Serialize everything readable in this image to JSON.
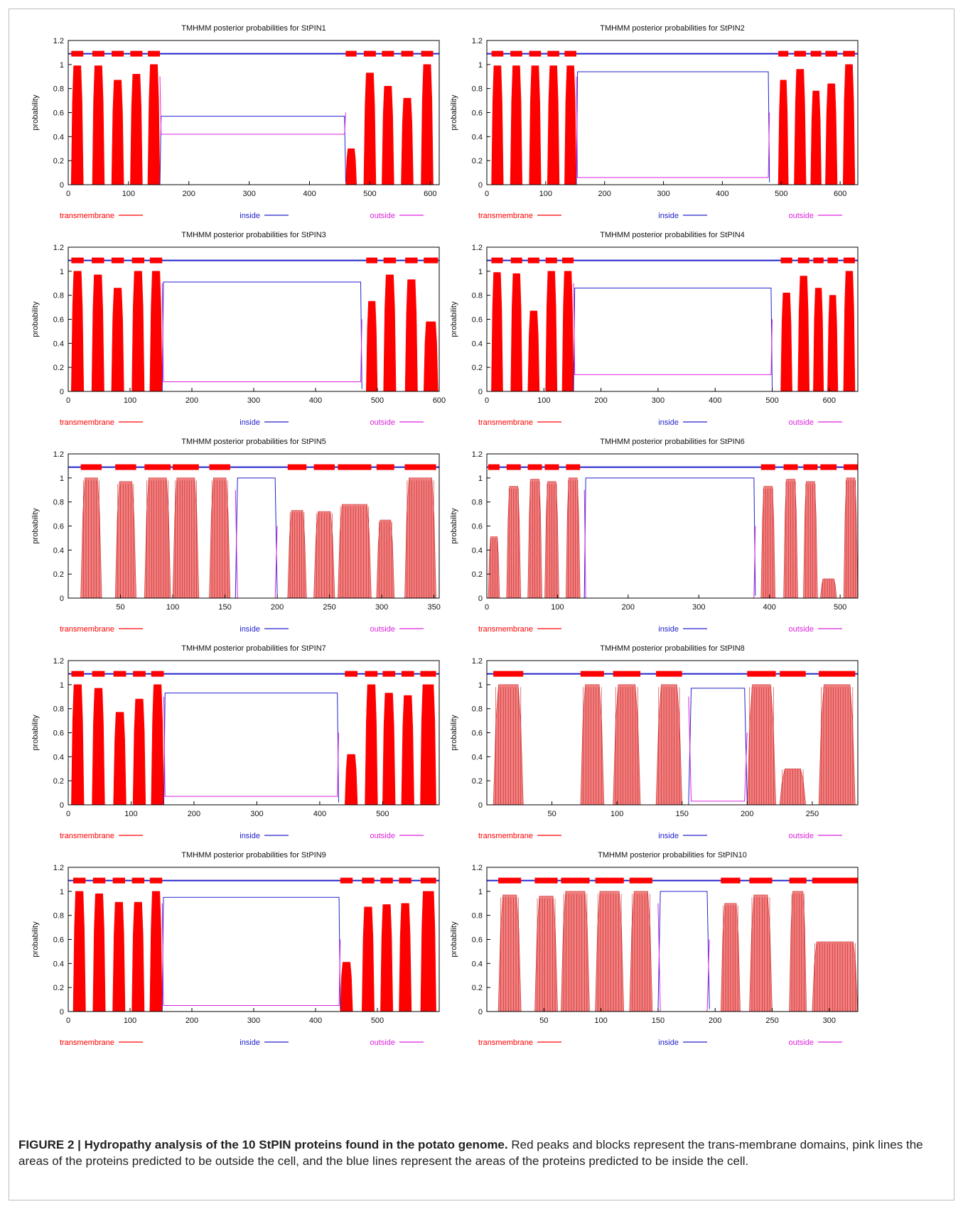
{
  "caption": {
    "label": "FIGURE 2 | Hydropathy analysis of the 10 StPIN proteins found in the potato genome.",
    "text": "Red peaks and blocks represent the trans-membrane domains, pink lines the areas of the proteins predicted to be outside the cell, and the blue lines represent the areas of the proteins predicted to be inside the cell."
  },
  "colors": {
    "transmembrane": "#ff0000",
    "transmembrane_striped": "#f08080",
    "inside": "#2222cc",
    "outside": "#dd22dd",
    "axis": "#000000"
  },
  "chart_data": [
    {
      "type": "area",
      "title": "TMHMM posterior probabilities for StPIN1",
      "ylabel": "probability",
      "xlim": [
        0,
        615
      ],
      "ylim": [
        0,
        1.2
      ],
      "xticks": [
        0,
        100,
        200,
        300,
        400,
        500,
        600
      ],
      "yticks": [
        0,
        0.2,
        0.4,
        0.6,
        0.8,
        1,
        1.2
      ],
      "grid": false,
      "style": "solid",
      "legend": [
        "transmembrane",
        "inside",
        "outside"
      ],
      "tm_segments": [
        [
          5,
          25,
          0.99
        ],
        [
          40,
          60,
          0.99
        ],
        [
          72,
          92,
          0.87
        ],
        [
          103,
          123,
          0.92
        ],
        [
          132,
          152,
          1.0
        ],
        [
          460,
          478,
          0.3
        ],
        [
          490,
          510,
          0.93
        ],
        [
          520,
          540,
          0.82
        ],
        [
          552,
          572,
          0.72
        ],
        [
          585,
          605,
          1.0
        ]
      ],
      "inside_level": 0.57,
      "outside_level": 0.42,
      "loop": [
        152,
        460
      ]
    },
    {
      "type": "area",
      "title": "TMHMM posterior probabilities for StPIN2",
      "ylabel": "probability",
      "xlim": [
        0,
        630
      ],
      "ylim": [
        0,
        1.2
      ],
      "xticks": [
        0,
        100,
        200,
        300,
        400,
        500,
        600
      ],
      "yticks": [
        0,
        0.2,
        0.4,
        0.6,
        0.8,
        1,
        1.2
      ],
      "grid": false,
      "style": "solid",
      "legend": [
        "transmembrane",
        "inside",
        "outside"
      ],
      "tm_segments": [
        [
          8,
          28,
          0.99
        ],
        [
          40,
          60,
          0.99
        ],
        [
          72,
          92,
          0.99
        ],
        [
          103,
          123,
          0.99
        ],
        [
          132,
          152,
          0.99
        ],
        [
          495,
          512,
          0.87
        ],
        [
          522,
          542,
          0.96
        ],
        [
          550,
          568,
          0.78
        ],
        [
          575,
          595,
          0.84
        ],
        [
          605,
          625,
          1.0
        ]
      ],
      "inside_level": 0.94,
      "outside_level": 0.06,
      "loop": [
        152,
        480
      ]
    },
    {
      "type": "area",
      "title": "TMHMM posterior probabilities for StPIN3",
      "ylabel": "probability",
      "xlim": [
        0,
        600
      ],
      "ylim": [
        0,
        1.2
      ],
      "xticks": [
        0,
        100,
        200,
        300,
        400,
        500,
        600
      ],
      "yticks": [
        0,
        0.2,
        0.4,
        0.6,
        0.8,
        1,
        1.2
      ],
      "grid": false,
      "style": "solid",
      "legend": [
        "transmembrane",
        "inside",
        "outside"
      ],
      "tm_segments": [
        [
          5,
          25,
          1.0
        ],
        [
          38,
          58,
          0.97
        ],
        [
          70,
          90,
          0.86
        ],
        [
          103,
          123,
          1.0
        ],
        [
          132,
          152,
          1.0
        ],
        [
          482,
          500,
          0.75
        ],
        [
          510,
          530,
          0.97
        ],
        [
          545,
          565,
          0.93
        ],
        [
          575,
          598,
          0.58
        ]
      ],
      "inside_level": 0.91,
      "outside_level": 0.08,
      "loop": [
        152,
        475
      ]
    },
    {
      "type": "area",
      "title": "TMHMM posterior probabilities for StPIN4",
      "ylabel": "probability",
      "xlim": [
        0,
        650
      ],
      "ylim": [
        0,
        1.2
      ],
      "xticks": [
        0,
        100,
        200,
        300,
        400,
        500,
        600
      ],
      "yticks": [
        0,
        0.2,
        0.4,
        0.6,
        0.8,
        1,
        1.2
      ],
      "grid": false,
      "style": "solid",
      "legend": [
        "transmembrane",
        "inside",
        "outside"
      ],
      "tm_segments": [
        [
          8,
          28,
          0.99
        ],
        [
          42,
          62,
          0.98
        ],
        [
          72,
          92,
          0.67
        ],
        [
          103,
          123,
          1.0
        ],
        [
          132,
          152,
          1.0
        ],
        [
          515,
          535,
          0.82
        ],
        [
          545,
          565,
          0.96
        ],
        [
          572,
          590,
          0.86
        ],
        [
          597,
          615,
          0.8
        ],
        [
          625,
          645,
          1.0
        ]
      ],
      "inside_level": 0.86,
      "outside_level": 0.14,
      "loop": [
        152,
        500
      ]
    },
    {
      "type": "area",
      "title": "TMHMM posterior probabilities for StPIN5",
      "ylabel": "probability",
      "xlim": [
        0,
        355
      ],
      "ylim": [
        0,
        1.2
      ],
      "xticks": [
        50,
        100,
        150,
        200,
        250,
        300,
        350
      ],
      "yticks": [
        0,
        0.2,
        0.4,
        0.6,
        0.8,
        1,
        1.2
      ],
      "grid": false,
      "style": "striped",
      "legend": [
        "transmembrane",
        "inside",
        "outside"
      ],
      "tm_segments": [
        [
          12,
          32,
          1.0
        ],
        [
          45,
          65,
          0.97
        ],
        [
          73,
          98,
          1.0
        ],
        [
          100,
          125,
          1.0
        ],
        [
          135,
          155,
          1.0
        ],
        [
          210,
          228,
          0.73
        ],
        [
          235,
          255,
          0.72
        ],
        [
          258,
          290,
          0.78
        ],
        [
          295,
          312,
          0.65
        ],
        [
          322,
          352,
          1.0
        ]
      ],
      "inside_level": 1.0,
      "outside_level": 0.0,
      "loop": [
        160,
        200
      ]
    },
    {
      "type": "area",
      "title": "TMHMM posterior probabilities for StPIN6",
      "ylabel": "probability",
      "xlim": [
        0,
        525
      ],
      "ylim": [
        0,
        1.2
      ],
      "xticks": [
        0,
        100,
        200,
        300,
        400,
        500
      ],
      "yticks": [
        0,
        0.2,
        0.4,
        0.6,
        0.8,
        1,
        1.2
      ],
      "grid": false,
      "style": "striped",
      "legend": [
        "transmembrane",
        "inside",
        "outside"
      ],
      "tm_segments": [
        [
          2,
          18,
          0.51
        ],
        [
          28,
          48,
          0.93
        ],
        [
          58,
          78,
          0.99
        ],
        [
          82,
          102,
          0.97
        ],
        [
          112,
          132,
          1.0
        ],
        [
          388,
          408,
          0.93
        ],
        [
          420,
          440,
          0.99
        ],
        [
          448,
          468,
          0.97
        ],
        [
          472,
          495,
          0.16
        ],
        [
          505,
          525,
          1.0
        ]
      ],
      "inside_level": 1.0,
      "outside_level": 0.0,
      "loop": [
        138,
        380
      ]
    },
    {
      "type": "area",
      "title": "TMHMM posterior probabilities for StPIN7",
      "ylabel": "probability",
      "xlim": [
        0,
        590
      ],
      "ylim": [
        0,
        1.2
      ],
      "xticks": [
        0,
        100,
        200,
        300,
        400,
        500
      ],
      "yticks": [
        0,
        0.2,
        0.4,
        0.6,
        0.8,
        1,
        1.2
      ],
      "grid": false,
      "style": "solid",
      "legend": [
        "transmembrane",
        "inside",
        "outside"
      ],
      "tm_segments": [
        [
          5,
          25,
          1.0
        ],
        [
          38,
          58,
          0.97
        ],
        [
          72,
          92,
          0.77
        ],
        [
          103,
          123,
          0.88
        ],
        [
          132,
          152,
          1.0
        ],
        [
          440,
          460,
          0.42
        ],
        [
          472,
          492,
          1.0
        ],
        [
          500,
          520,
          0.93
        ],
        [
          530,
          550,
          0.91
        ],
        [
          560,
          585,
          1.0
        ]
      ],
      "inside_level": 0.93,
      "outside_level": 0.07,
      "loop": [
        152,
        430
      ]
    },
    {
      "type": "area",
      "title": "TMHMM posterior probabilities for StPIN8",
      "ylabel": "probability",
      "xlim": [
        0,
        285
      ],
      "ylim": [
        0,
        1.2
      ],
      "xticks": [
        50,
        100,
        150,
        200,
        250
      ],
      "yticks": [
        0,
        0.2,
        0.4,
        0.6,
        0.8,
        1,
        1.2
      ],
      "grid": false,
      "style": "striped",
      "legend": [
        "transmembrane",
        "inside",
        "outside"
      ],
      "tm_segments": [
        [
          5,
          28,
          1.0
        ],
        [
          72,
          90,
          1.0
        ],
        [
          97,
          118,
          1.0
        ],
        [
          130,
          150,
          1.0
        ],
        [
          200,
          222,
          1.0
        ],
        [
          225,
          245,
          0.3
        ],
        [
          255,
          283,
          1.0
        ]
      ],
      "inside_level": 0.97,
      "outside_level": 0.03,
      "loop": [
        155,
        200
      ]
    },
    {
      "type": "area",
      "title": "TMHMM posterior probabilities for StPIN9",
      "ylabel": "probability",
      "xlim": [
        0,
        600
      ],
      "ylim": [
        0,
        1.2
      ],
      "xticks": [
        0,
        100,
        200,
        300,
        400,
        500
      ],
      "yticks": [
        0,
        0.2,
        0.4,
        0.6,
        0.8,
        1,
        1.2
      ],
      "grid": false,
      "style": "solid",
      "legend": [
        "transmembrane",
        "inside",
        "outside"
      ],
      "tm_segments": [
        [
          8,
          28,
          1.0
        ],
        [
          40,
          60,
          0.98
        ],
        [
          72,
          92,
          0.91
        ],
        [
          103,
          123,
          0.91
        ],
        [
          132,
          152,
          1.0
        ],
        [
          440,
          460,
          0.41
        ],
        [
          475,
          495,
          0.87
        ],
        [
          505,
          525,
          0.89
        ],
        [
          535,
          555,
          0.9
        ],
        [
          570,
          595,
          1.0
        ]
      ],
      "inside_level": 0.95,
      "outside_level": 0.05,
      "loop": [
        152,
        440
      ]
    },
    {
      "type": "area",
      "title": "TMHMM posterior probabilities for StPIN10",
      "ylabel": "probability",
      "xlim": [
        0,
        325
      ],
      "ylim": [
        0,
        1.2
      ],
      "xticks": [
        50,
        100,
        150,
        200,
        250,
        300
      ],
      "yticks": [
        0,
        0.2,
        0.4,
        0.6,
        0.8,
        1,
        1.2
      ],
      "grid": false,
      "style": "striped",
      "legend": [
        "transmembrane",
        "inside",
        "outside"
      ],
      "tm_segments": [
        [
          10,
          30,
          0.97
        ],
        [
          42,
          62,
          0.96
        ],
        [
          65,
          90,
          1.0
        ],
        [
          95,
          120,
          1.0
        ],
        [
          125,
          145,
          1.0
        ],
        [
          205,
          222,
          0.9
        ],
        [
          230,
          250,
          0.97
        ],
        [
          265,
          280,
          1.0
        ],
        [
          285,
          325,
          0.58
        ]
      ],
      "inside_level": 1.0,
      "outside_level": 0.0,
      "loop": [
        150,
        195
      ]
    }
  ]
}
